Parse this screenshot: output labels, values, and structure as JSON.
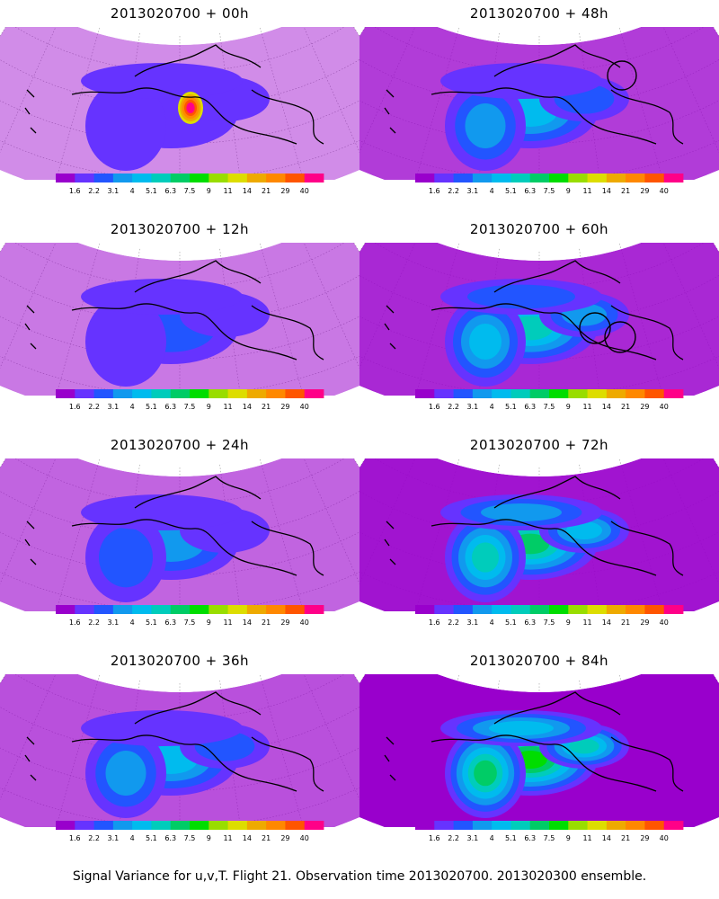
{
  "chart_data": {
    "type": "contour-map",
    "panels": [
      {
        "title": "2013020700 + 00h",
        "lead_hours": 0
      },
      {
        "title": "2013020700 + 48h",
        "lead_hours": 48
      },
      {
        "title": "2013020700 + 12h",
        "lead_hours": 12
      },
      {
        "title": "2013020700 + 60h",
        "lead_hours": 60
      },
      {
        "title": "2013020700 + 24h",
        "lead_hours": 24
      },
      {
        "title": "2013020700 + 72h",
        "lead_hours": 72
      },
      {
        "title": "2013020700 + 36h",
        "lead_hours": 36
      },
      {
        "title": "2013020700 + 84h",
        "lead_hours": 84
      }
    ],
    "colorbar": {
      "tick_labels": [
        "1.6",
        "2.2",
        "3.1",
        "4",
        "5.1",
        "6.3",
        "7.5",
        "9",
        "11",
        "14",
        "21",
        "29",
        "40"
      ],
      "colors": [
        "#9900cc",
        "#6633ff",
        "#2255ff",
        "#1199ee",
        "#00bbee",
        "#00ccbb",
        "#00cc66",
        "#00dd00",
        "#99dd00",
        "#dddd00",
        "#eeaa00",
        "#ff8800",
        "#ff5500",
        "#ff0088"
      ]
    }
  },
  "footer": {
    "caption": "Signal Variance for u,v,T. Flight 21. Observation time 2013020700. 2013020300 ensemble."
  }
}
